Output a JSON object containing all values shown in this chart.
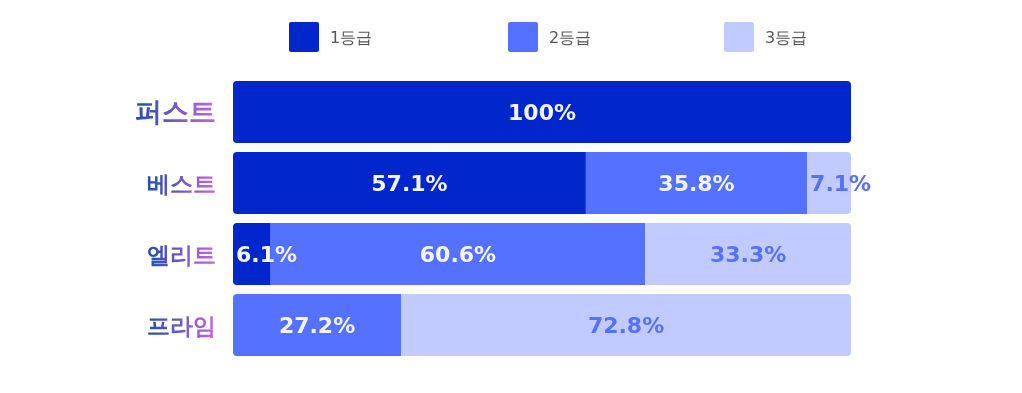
{
  "chart_data": {
    "type": "bar",
    "orientation": "horizontal",
    "stacked": true,
    "categories": [
      "퍼스트",
      "베스트",
      "엘리트",
      "프라임"
    ],
    "xlim": [
      0,
      100
    ],
    "legend": "top",
    "series": [
      {
        "name": "1등급",
        "color": "#0026cc",
        "values": [
          100,
          57.1,
          6.1,
          0
        ],
        "value_labels": [
          "100%",
          "57.1%",
          "6.1%",
          null
        ]
      },
      {
        "name": "2등급",
        "color": "#5571ff",
        "values": [
          0,
          35.8,
          60.6,
          27.2
        ],
        "value_labels": [
          null,
          "35.8%",
          "60.6%",
          "27.2%"
        ]
      },
      {
        "name": "3등급",
        "color": "#c2cbff",
        "values": [
          0,
          7.1,
          33.3,
          72.8
        ],
        "value_labels": [
          null,
          "7.1%",
          "33.3%",
          "72.8%"
        ]
      }
    ]
  }
}
